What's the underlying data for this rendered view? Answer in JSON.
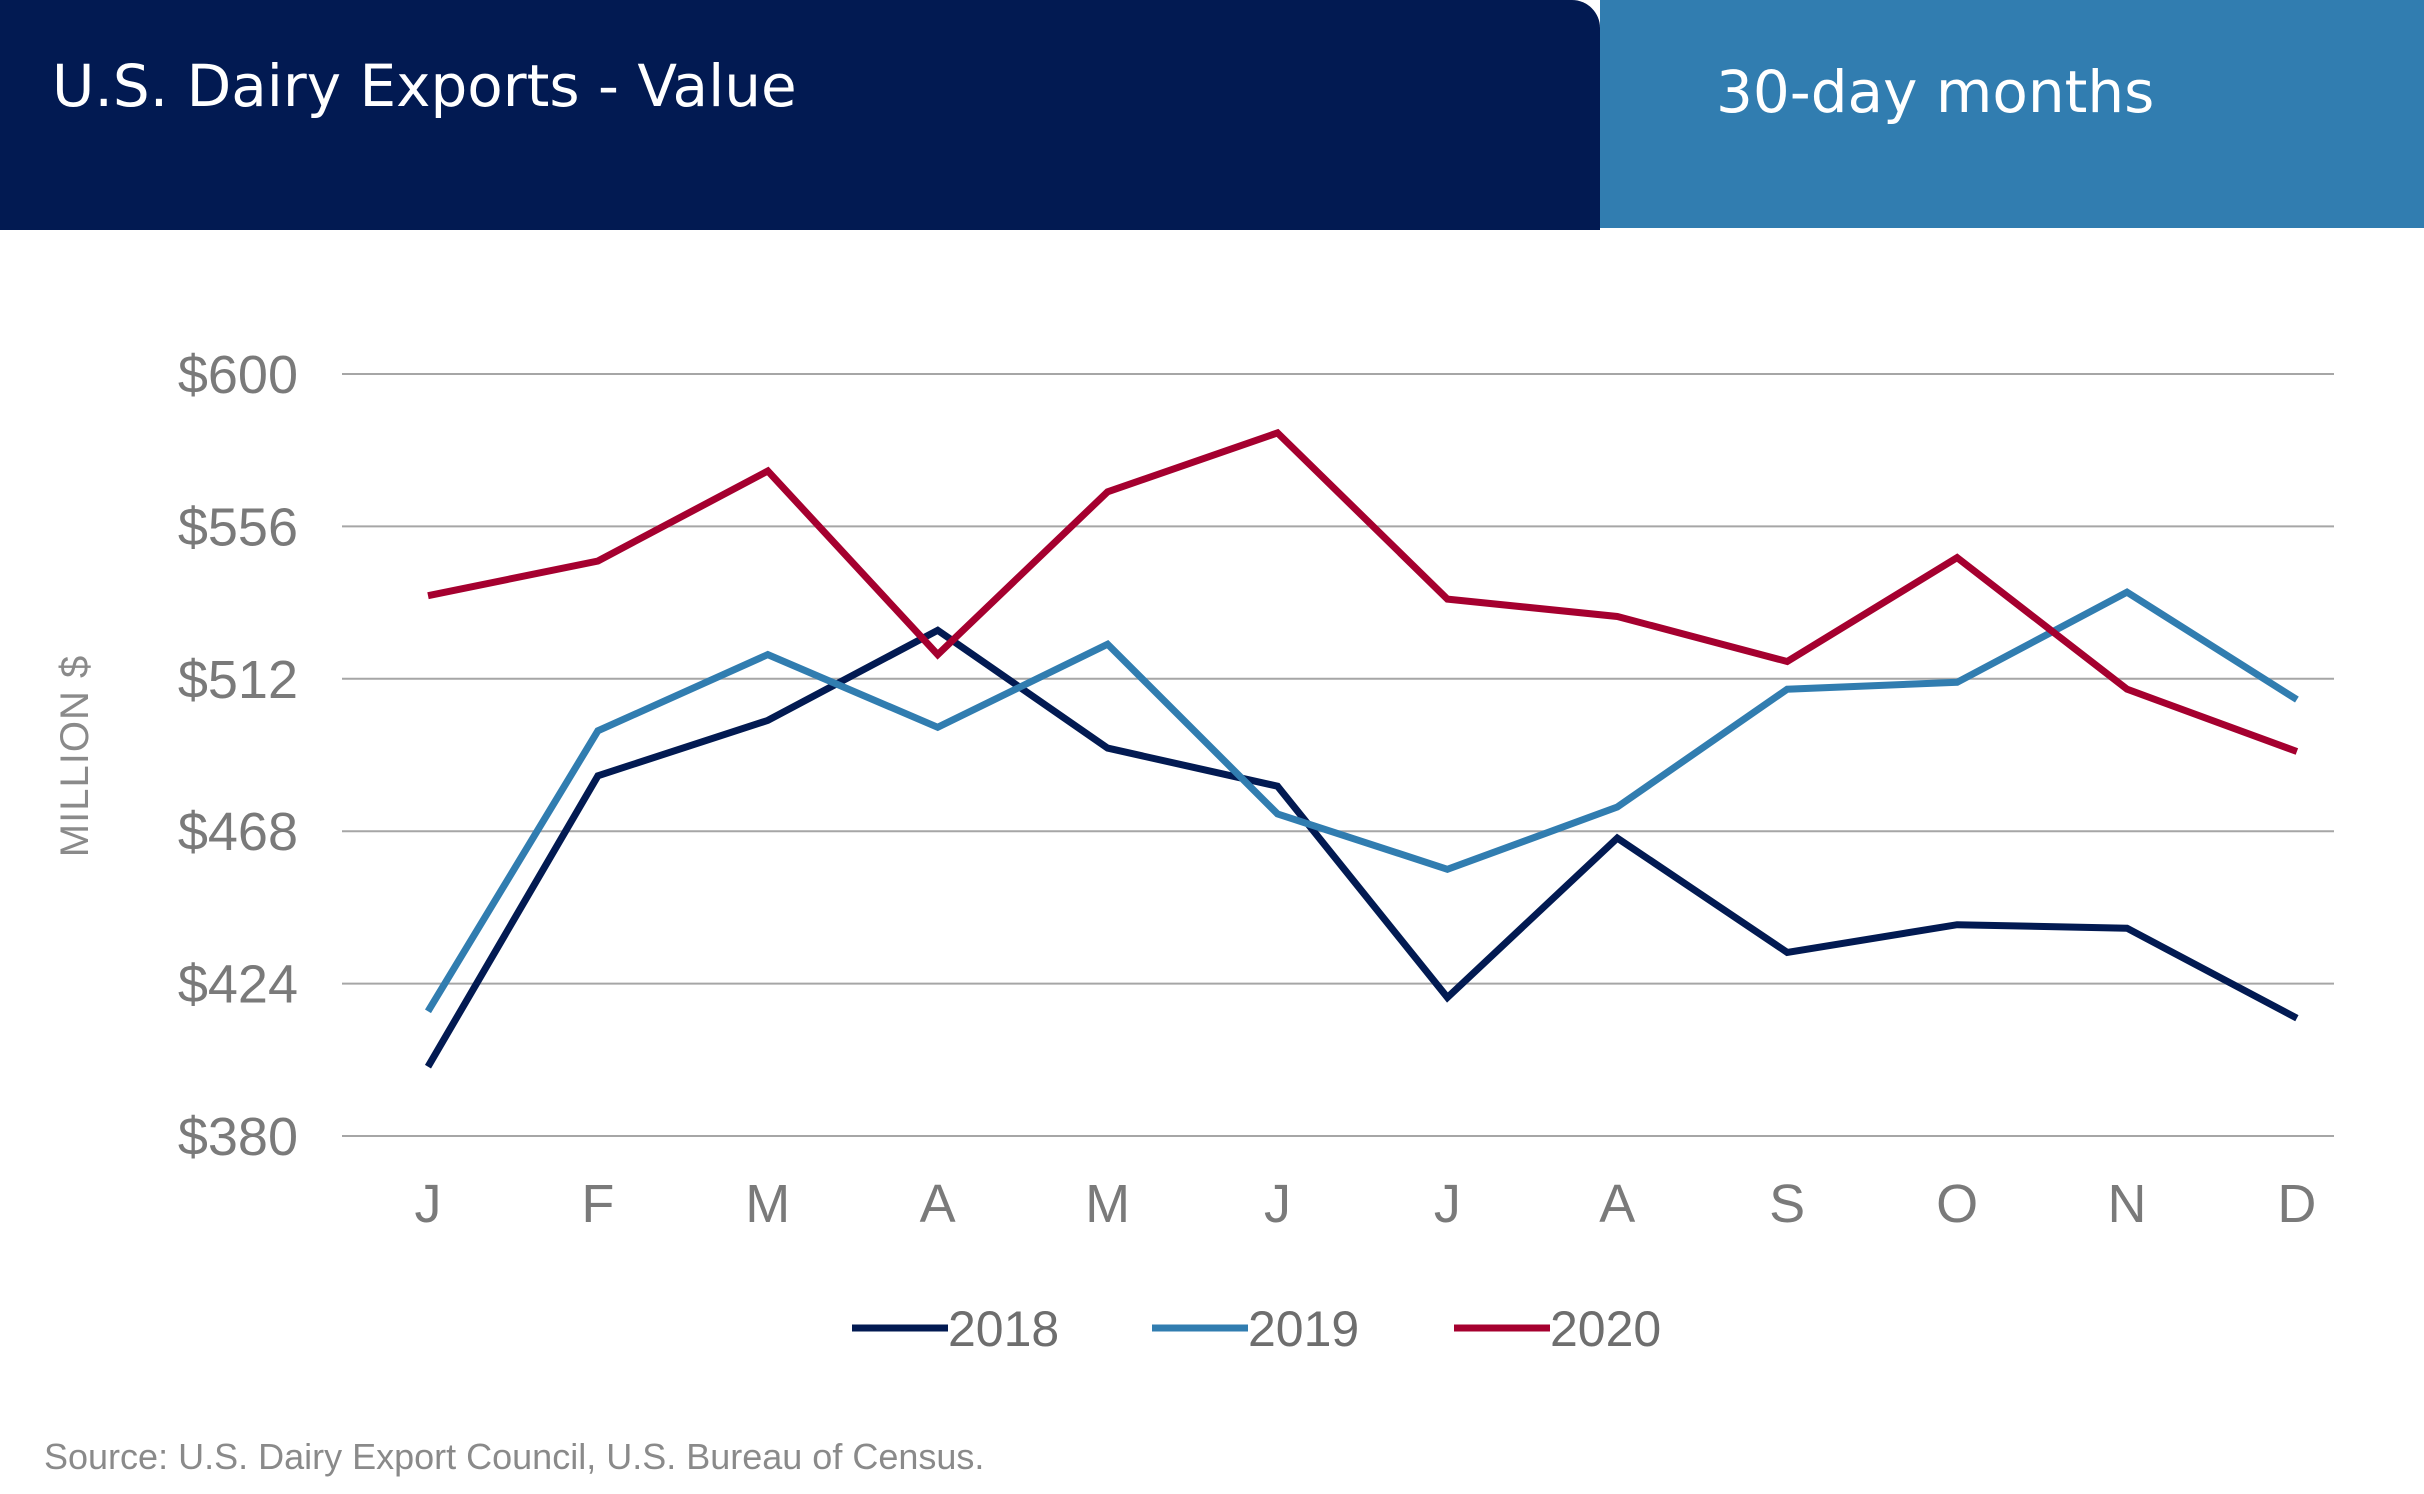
{
  "header": {
    "title": "U.S. Dairy Exports - Value",
    "subtitle": "30-day months"
  },
  "source": "Source: U.S. Dairy Export Council, U.S. Bureau of Census.",
  "colors": {
    "header_dark": "#021a52",
    "header_light": "#317db0",
    "series_2018": "#021a52",
    "series_2019": "#317db0",
    "series_2020": "#a5002f",
    "grid": "#a6a6a6"
  },
  "chart_data": {
    "type": "line",
    "title": "",
    "xlabel": "",
    "ylabel": "MILLION $",
    "categories": [
      "J",
      "F",
      "M",
      "A",
      "M",
      "J",
      "J",
      "A",
      "S",
      "O",
      "N",
      "D"
    ],
    "y_ticks": [
      "$380",
      "$424",
      "$468",
      "$512",
      "$556",
      "$600"
    ],
    "ylim": [
      380,
      600
    ],
    "grid": true,
    "legend_position": "bottom-center",
    "series": [
      {
        "name": "2018",
        "color": "#021a52",
        "values": [
          400,
          484,
          500,
          526,
          492,
          481,
          420,
          466,
          433,
          441,
          440,
          414
        ]
      },
      {
        "name": "2019",
        "color": "#317db0",
        "values": [
          416,
          497,
          519,
          498,
          522,
          473,
          457,
          475,
          509,
          511,
          537,
          506
        ]
      },
      {
        "name": "2020",
        "color": "#a5002f",
        "values": [
          536,
          546,
          572,
          519,
          566,
          583,
          535,
          530,
          517,
          547,
          509,
          491
        ]
      }
    ]
  }
}
